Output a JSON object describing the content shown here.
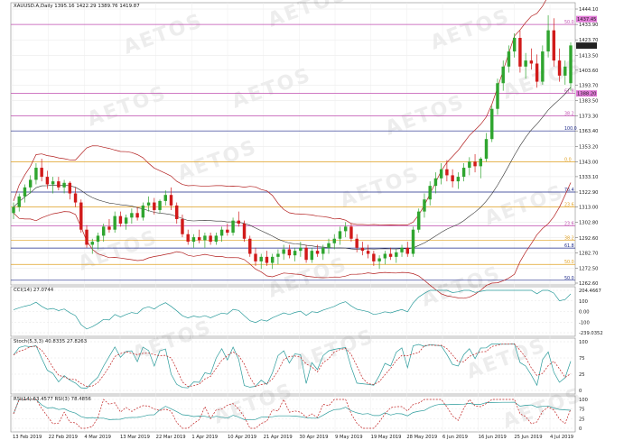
{
  "watermark": "AETOS",
  "chart_data": {
    "type": "candlestick",
    "title": "XAUUSD.A,Daily  1395.16 1422.29 1389.76 1419.87",
    "x_dates": [
      "13 Feb 2019",
      "22 Feb 2019",
      "4 Mar 2019",
      "13 Mar 2019",
      "22 Mar 2019",
      "1 Apr 2019",
      "10 Apr 2019",
      "21 Apr 2019",
      "30 Apr 2019",
      "9 May 2019",
      "19 May 2019",
      "28 May 2019",
      "6 Jun 2019",
      "16 Jun 2019",
      "25 Jun 2019",
      "4 Jul 2019"
    ],
    "price_ticks": [
      "1444.10",
      "1433.90",
      "1423.70",
      "1413.50",
      "1403.60",
      "1393.70",
      "1383.50",
      "1373.30",
      "1363.40",
      "1353.20",
      "1343.00",
      "1333.10",
      "1322.90",
      "1313.00",
      "1302.80",
      "1292.60",
      "1282.70",
      "1272.50",
      "1262.60"
    ],
    "ylim": [
      1262.6,
      1446.5
    ],
    "current_price": "1419.87",
    "current_price_value": 1419.87,
    "fib_levels": [
      {
        "label": "50.0",
        "value": 1433.9,
        "color": "#c04fb0"
      },
      {
        "label": "61.8",
        "value": 1388.2,
        "color": "#c04fb0"
      },
      {
        "label": "38.2",
        "value": 1373.3,
        "color": "#c04fb0"
      },
      {
        "label": "100.0",
        "value": 1363.4,
        "color": "#1e2a8a"
      },
      {
        "label": "0.0",
        "value": 1343.0,
        "color": "#e0a020"
      },
      {
        "label": "76.4",
        "value": 1322.9,
        "color": "#1e2a8a"
      },
      {
        "label": "23.6",
        "value": 1313.0,
        "color": "#e0a020"
      },
      {
        "label": "23.6",
        "value": 1300.5,
        "color": "#c04fb0"
      },
      {
        "label": "38.2",
        "value": 1291.0,
        "color": "#e0a020"
      },
      {
        "label": "61.8",
        "value": 1285.8,
        "color": "#1e2a8a"
      },
      {
        "label": "50.0",
        "value": 1275.0,
        "color": "#e0a020"
      },
      {
        "label": "50.0",
        "value": 1264.5,
        "color": "#1e2a8a"
      }
    ],
    "price_tags": [
      {
        "label": "1437.45",
        "value": 1437.45
      },
      {
        "label": "1388.20",
        "value": 1388.2
      }
    ],
    "candles": [
      [
        1309,
        1316,
        1305,
        1313
      ],
      [
        1313,
        1322,
        1310,
        1320
      ],
      [
        1320,
        1328,
        1316,
        1326
      ],
      [
        1326,
        1334,
        1322,
        1331
      ],
      [
        1331,
        1342,
        1328,
        1339
      ],
      [
        1339,
        1345,
        1330,
        1333
      ],
      [
        1333,
        1337,
        1325,
        1328
      ],
      [
        1328,
        1333,
        1322,
        1330
      ],
      [
        1330,
        1333,
        1324,
        1326
      ],
      [
        1326,
        1331,
        1322,
        1329
      ],
      [
        1329,
        1330,
        1318,
        1322
      ],
      [
        1322,
        1326,
        1313,
        1316
      ],
      [
        1316,
        1318,
        1296,
        1298
      ],
      [
        1298,
        1301,
        1286,
        1288
      ],
      [
        1288,
        1292,
        1282,
        1290
      ],
      [
        1290,
        1296,
        1285,
        1294
      ],
      [
        1294,
        1302,
        1290,
        1300
      ],
      [
        1300,
        1305,
        1296,
        1298
      ],
      [
        1298,
        1310,
        1296,
        1307
      ],
      [
        1307,
        1310,
        1300,
        1302
      ],
      [
        1302,
        1308,
        1298,
        1306
      ],
      [
        1306,
        1312,
        1302,
        1309
      ],
      [
        1309,
        1313,
        1304,
        1306
      ],
      [
        1306,
        1316,
        1304,
        1314
      ],
      [
        1314,
        1320,
        1310,
        1316
      ],
      [
        1316,
        1319,
        1308,
        1311
      ],
      [
        1311,
        1318,
        1309,
        1317
      ],
      [
        1317,
        1324,
        1314,
        1321
      ],
      [
        1321,
        1326,
        1311,
        1314
      ],
      [
        1314,
        1316,
        1302,
        1305
      ],
      [
        1305,
        1308,
        1293,
        1295
      ],
      [
        1295,
        1298,
        1288,
        1290
      ],
      [
        1290,
        1295,
        1286,
        1293
      ],
      [
        1293,
        1298,
        1289,
        1291
      ],
      [
        1291,
        1296,
        1286,
        1294
      ],
      [
        1294,
        1296,
        1288,
        1290
      ],
      [
        1290,
        1296,
        1288,
        1294
      ],
      [
        1294,
        1300,
        1290,
        1298
      ],
      [
        1298,
        1302,
        1294,
        1296
      ],
      [
        1296,
        1306,
        1294,
        1304
      ],
      [
        1304,
        1310,
        1300,
        1302
      ],
      [
        1302,
        1304,
        1290,
        1292
      ],
      [
        1292,
        1294,
        1280,
        1282
      ],
      [
        1282,
        1286,
        1274,
        1277
      ],
      [
        1277,
        1282,
        1272,
        1280
      ],
      [
        1280,
        1284,
        1274,
        1276
      ],
      [
        1276,
        1282,
        1272,
        1280
      ],
      [
        1280,
        1285,
        1275,
        1282
      ],
      [
        1282,
        1288,
        1278,
        1285
      ],
      [
        1285,
        1288,
        1279,
        1281
      ],
      [
        1281,
        1286,
        1277,
        1284
      ],
      [
        1284,
        1290,
        1280,
        1286
      ],
      [
        1286,
        1288,
        1276,
        1278
      ],
      [
        1278,
        1286,
        1276,
        1284
      ],
      [
        1284,
        1288,
        1280,
        1282
      ],
      [
        1282,
        1288,
        1278,
        1286
      ],
      [
        1286,
        1292,
        1282,
        1289
      ],
      [
        1289,
        1295,
        1285,
        1292
      ],
      [
        1292,
        1300,
        1288,
        1297
      ],
      [
        1297,
        1303,
        1293,
        1300
      ],
      [
        1300,
        1302,
        1290,
        1292
      ],
      [
        1292,
        1295,
        1283,
        1286
      ],
      [
        1286,
        1290,
        1281,
        1284
      ],
      [
        1284,
        1288,
        1279,
        1282
      ],
      [
        1282,
        1284,
        1274,
        1277
      ],
      [
        1277,
        1281,
        1272,
        1279
      ],
      [
        1279,
        1284,
        1275,
        1282
      ],
      [
        1282,
        1286,
        1278,
        1280
      ],
      [
        1280,
        1285,
        1276,
        1283
      ],
      [
        1283,
        1288,
        1280,
        1286
      ],
      [
        1286,
        1290,
        1280,
        1282
      ],
      [
        1282,
        1300,
        1280,
        1298
      ],
      [
        1298,
        1312,
        1296,
        1310
      ],
      [
        1310,
        1322,
        1306,
        1318
      ],
      [
        1318,
        1330,
        1314,
        1327
      ],
      [
        1327,
        1336,
        1322,
        1332
      ],
      [
        1332,
        1342,
        1328,
        1338
      ],
      [
        1338,
        1344,
        1330,
        1334
      ],
      [
        1334,
        1338,
        1326,
        1330
      ],
      [
        1330,
        1336,
        1325,
        1333
      ],
      [
        1333,
        1342,
        1330,
        1339
      ],
      [
        1339,
        1346,
        1334,
        1343
      ],
      [
        1343,
        1348,
        1336,
        1340
      ],
      [
        1340,
        1346,
        1332,
        1345
      ],
      [
        1345,
        1362,
        1343,
        1358
      ],
      [
        1358,
        1380,
        1356,
        1378
      ],
      [
        1378,
        1398,
        1374,
        1395
      ],
      [
        1395,
        1410,
        1390,
        1406
      ],
      [
        1406,
        1420,
        1402,
        1416
      ],
      [
        1416,
        1428,
        1412,
        1425
      ],
      [
        1425,
        1430,
        1402,
        1406
      ],
      [
        1406,
        1415,
        1398,
        1410
      ],
      [
        1410,
        1418,
        1404,
        1408
      ],
      [
        1408,
        1414,
        1392,
        1396
      ],
      [
        1396,
        1420,
        1394,
        1416
      ],
      [
        1416,
        1440,
        1412,
        1430
      ],
      [
        1430,
        1438,
        1406,
        1410
      ],
      [
        1410,
        1418,
        1396,
        1400
      ],
      [
        1400,
        1410,
        1394,
        1406
      ],
      [
        1395,
        1422,
        1390,
        1420
      ]
    ],
    "indicators": [
      {
        "name": "CCI(14)",
        "label": "CCI(14) 27.0744",
        "ticks": [
          "204.4667",
          "100",
          "0.00",
          "-100",
          "-239.0352"
        ]
      },
      {
        "name": "Stoch(5,3,3)",
        "label": "Stoch(5,3,3) 40.8335 27.8263",
        "ticks": [
          "100",
          "75",
          "25",
          "0"
        ]
      },
      {
        "name": "RSI(14)",
        "label": "RSI(14) 63.4577  RSI(3) 78.4856",
        "ticks": [
          "100",
          "75",
          "25",
          "0"
        ]
      }
    ],
    "grid": true
  }
}
